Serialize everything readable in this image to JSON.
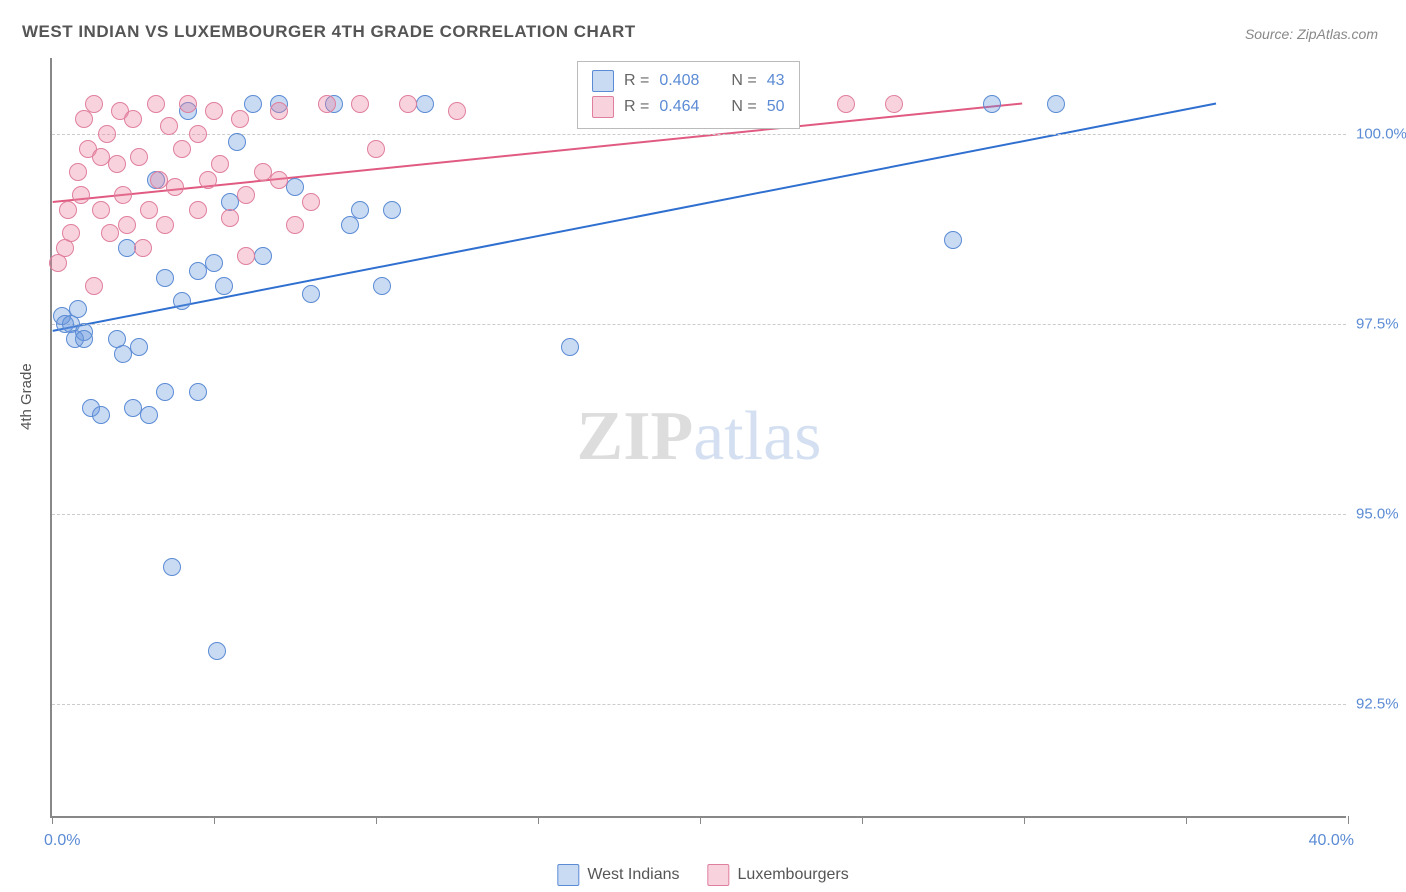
{
  "title": "WEST INDIAN VS LUXEMBOURGER 4TH GRADE CORRELATION CHART",
  "source": "Source: ZipAtlas.com",
  "y_axis_label": "4th Grade",
  "watermark": {
    "zip": "ZIP",
    "atlas": "atlas"
  },
  "chart": {
    "type": "scatter",
    "x_domain": [
      0,
      40
    ],
    "y_domain": [
      91,
      101
    ],
    "x_range_labels": {
      "min": "0.0%",
      "max": "40.0%"
    },
    "y_ticks": [
      {
        "value": 92.5,
        "label": "92.5%"
      },
      {
        "value": 95.0,
        "label": "95.0%"
      },
      {
        "value": 97.5,
        "label": "97.5%"
      },
      {
        "value": 100.0,
        "label": "100.0%"
      }
    ],
    "x_tick_positions": [
      0,
      5,
      10,
      15,
      20,
      25,
      30,
      35,
      40
    ],
    "background_color": "#ffffff",
    "grid_color": "#cccccc",
    "series": [
      {
        "name": "West Indians",
        "color_fill": "rgba(100,150,220,0.35)",
        "color_stroke": "#5b8bd4",
        "marker_radius": 9,
        "trend": {
          "x1": 0,
          "y1": 97.4,
          "x2": 36,
          "y2": 100.4,
          "stroke": "#2f6fd0",
          "width": 2
        },
        "R_label": "R =",
        "R_value": "0.408",
        "N_label": "N =",
        "N_value": "43",
        "points": [
          [
            0.3,
            97.6
          ],
          [
            0.4,
            97.5
          ],
          [
            0.6,
            97.5
          ],
          [
            0.7,
            97.3
          ],
          [
            0.8,
            97.7
          ],
          [
            1.0,
            97.4
          ],
          [
            1.0,
            97.3
          ],
          [
            1.2,
            96.4
          ],
          [
            1.5,
            96.3
          ],
          [
            2.0,
            97.3
          ],
          [
            2.2,
            97.1
          ],
          [
            2.3,
            98.5
          ],
          [
            2.5,
            96.4
          ],
          [
            2.7,
            97.2
          ],
          [
            3.0,
            96.3
          ],
          [
            3.2,
            99.4
          ],
          [
            3.5,
            96.6
          ],
          [
            3.5,
            98.1
          ],
          [
            3.7,
            94.3
          ],
          [
            4.0,
            97.8
          ],
          [
            4.2,
            100.3
          ],
          [
            4.5,
            96.6
          ],
          [
            4.5,
            98.2
          ],
          [
            5.0,
            98.3
          ],
          [
            5.1,
            93.2
          ],
          [
            5.3,
            98.0
          ],
          [
            5.5,
            99.1
          ],
          [
            5.7,
            99.9
          ],
          [
            6.2,
            100.4
          ],
          [
            6.5,
            98.4
          ],
          [
            7.0,
            100.4
          ],
          [
            7.5,
            99.3
          ],
          [
            8.0,
            97.9
          ],
          [
            8.7,
            100.4
          ],
          [
            9.2,
            98.8
          ],
          [
            9.5,
            99.0
          ],
          [
            10.2,
            98.0
          ],
          [
            10.5,
            99.0
          ],
          [
            11.5,
            100.4
          ],
          [
            16.0,
            97.2
          ],
          [
            27.8,
            98.6
          ],
          [
            31.0,
            100.4
          ],
          [
            29.0,
            100.4
          ]
        ]
      },
      {
        "name": "Luxembourgers",
        "color_fill": "rgba(235,130,160,0.35)",
        "color_stroke": "#e07f9d",
        "marker_radius": 9,
        "trend": {
          "x1": 0,
          "y1": 99.1,
          "x2": 30,
          "y2": 100.4,
          "stroke": "#e05a82",
          "width": 2
        },
        "R_label": "R =",
        "R_value": "0.464",
        "N_label": "N =",
        "N_value": "50",
        "points": [
          [
            0.2,
            98.3
          ],
          [
            0.4,
            98.5
          ],
          [
            0.5,
            99.0
          ],
          [
            0.6,
            98.7
          ],
          [
            0.8,
            99.5
          ],
          [
            0.9,
            99.2
          ],
          [
            1.0,
            100.2
          ],
          [
            1.1,
            99.8
          ],
          [
            1.3,
            98.0
          ],
          [
            1.3,
            100.4
          ],
          [
            1.5,
            99.0
          ],
          [
            1.5,
            99.7
          ],
          [
            1.7,
            100.0
          ],
          [
            1.8,
            98.7
          ],
          [
            2.0,
            99.6
          ],
          [
            2.1,
            100.3
          ],
          [
            2.2,
            99.2
          ],
          [
            2.3,
            98.8
          ],
          [
            2.5,
            100.2
          ],
          [
            2.7,
            99.7
          ],
          [
            2.8,
            98.5
          ],
          [
            3.0,
            99.0
          ],
          [
            3.2,
            100.4
          ],
          [
            3.3,
            99.4
          ],
          [
            3.5,
            98.8
          ],
          [
            3.6,
            100.1
          ],
          [
            3.8,
            99.3
          ],
          [
            4.0,
            99.8
          ],
          [
            4.2,
            100.4
          ],
          [
            4.5,
            99.0
          ],
          [
            4.5,
            100.0
          ],
          [
            4.8,
            99.4
          ],
          [
            5.0,
            100.3
          ],
          [
            5.2,
            99.6
          ],
          [
            5.5,
            98.9
          ],
          [
            5.8,
            100.2
          ],
          [
            6.0,
            99.2
          ],
          [
            6.0,
            98.4
          ],
          [
            6.5,
            99.5
          ],
          [
            7.0,
            99.4
          ],
          [
            7.0,
            100.3
          ],
          [
            7.5,
            98.8
          ],
          [
            8.0,
            99.1
          ],
          [
            8.5,
            100.4
          ],
          [
            9.5,
            100.4
          ],
          [
            10.0,
            99.8
          ],
          [
            11.0,
            100.4
          ],
          [
            12.5,
            100.3
          ],
          [
            24.5,
            100.4
          ],
          [
            26.0,
            100.4
          ]
        ]
      }
    ]
  },
  "bottom_legend": [
    {
      "swatch": "blue",
      "label": "West Indians"
    },
    {
      "swatch": "pink",
      "label": "Luxembourgers"
    }
  ]
}
